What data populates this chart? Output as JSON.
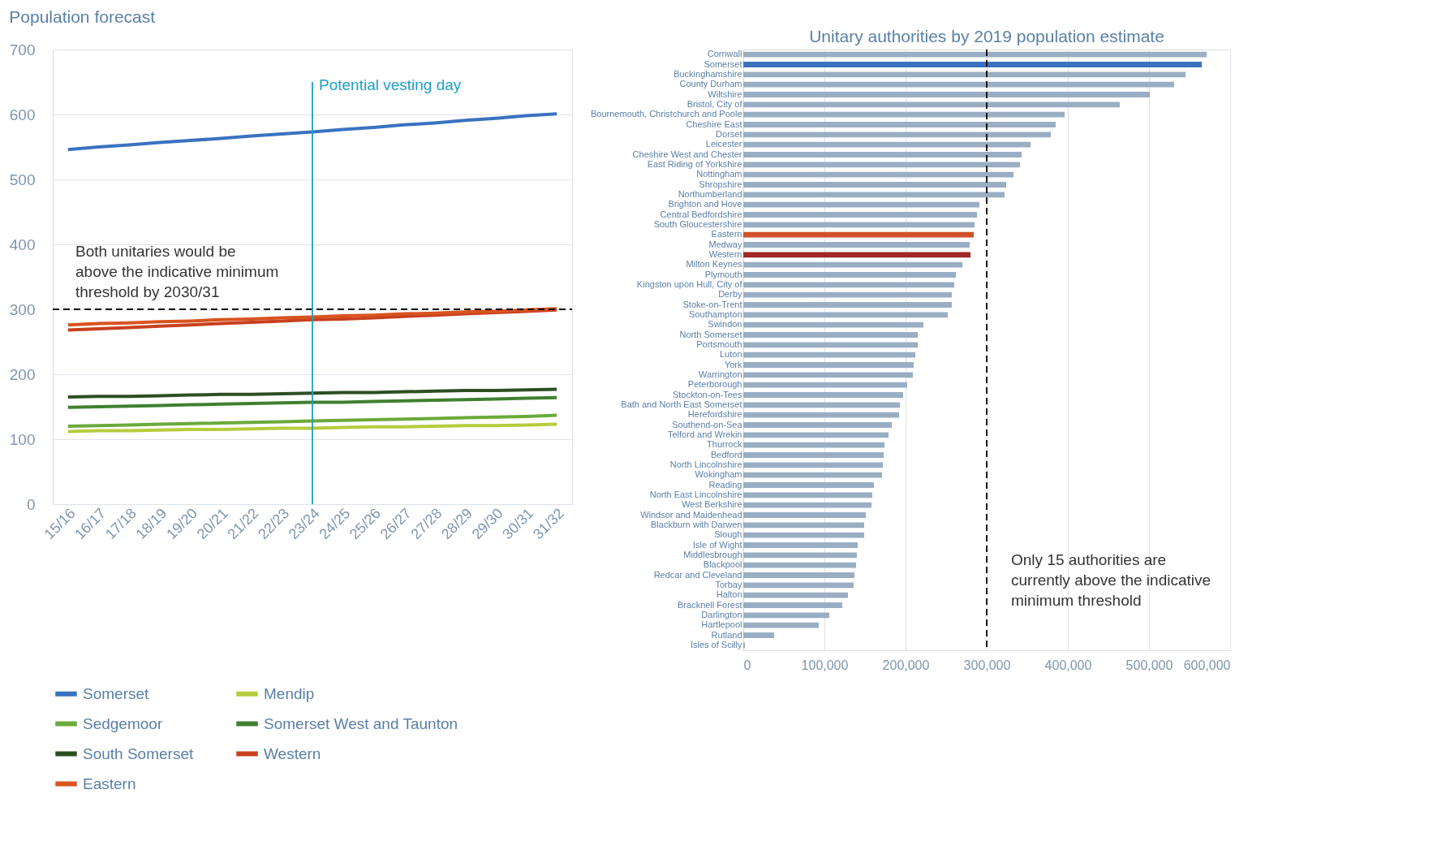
{
  "chart_data": [
    {
      "type": "line",
      "title": "Population forecast",
      "categories": [
        "15/16",
        "16/17",
        "17/18",
        "18/19",
        "19/20",
        "20/21",
        "21/22",
        "22/23",
        "23/24",
        "24/25",
        "25/26",
        "26/27",
        "27/28",
        "28/29",
        "29/30",
        "30/31",
        "31/32"
      ],
      "series": [
        {
          "name": "Somerset",
          "color": "#3a72c0",
          "values": [
            546,
            550,
            553,
            557,
            560,
            563,
            567,
            570,
            573,
            577,
            580,
            584,
            587,
            591,
            594,
            598,
            601
          ]
        },
        {
          "name": "Mendip",
          "color": "#b5cc3c",
          "values": [
            112,
            113,
            113,
            114,
            115,
            115,
            116,
            117,
            117,
            118,
            119,
            119,
            120,
            121,
            121,
            122,
            123
          ]
        },
        {
          "name": "Sedgemoor",
          "color": "#6aaa3a",
          "values": [
            120,
            121,
            122,
            123,
            124,
            125,
            126,
            127,
            128,
            129,
            130,
            131,
            132,
            133,
            134,
            135,
            137
          ]
        },
        {
          "name": "Somerset West and Taunton",
          "color": "#3f8030",
          "values": [
            149,
            150,
            151,
            152,
            153,
            154,
            155,
            156,
            157,
            157,
            158,
            159,
            160,
            161,
            162,
            163,
            164
          ]
        },
        {
          "name": "South Somerset",
          "color": "#2c4f22",
          "values": [
            165,
            166,
            166,
            167,
            168,
            169,
            169,
            170,
            171,
            172,
            172,
            173,
            174,
            175,
            175,
            176,
            177
          ]
        },
        {
          "name": "Western",
          "color": "#c8401f",
          "values": [
            268,
            270,
            272,
            274,
            276,
            278,
            280,
            282,
            284,
            285,
            287,
            289,
            291,
            293,
            295,
            297,
            299
          ]
        },
        {
          "name": "Eastern",
          "color": "#d9531e",
          "values": [
            276,
            278,
            279,
            281,
            282,
            284,
            285,
            287,
            288,
            290,
            291,
            293,
            294,
            296,
            297,
            299,
            301
          ]
        }
      ],
      "ylim": [
        0,
        700
      ],
      "yticks": [
        0,
        100,
        200,
        300,
        400,
        500,
        600,
        700
      ],
      "grid": "y",
      "legend": "bottom",
      "marker": "none",
      "line_style": "solid",
      "ref_lines": [
        {
          "axis": "y",
          "value": 300,
          "label": null,
          "color": "#000000",
          "line_style": "dashed"
        },
        {
          "axis": "x",
          "value": "23/24",
          "label": "Potential vesting day",
          "color": "#1aa0c8",
          "line_style": "solid"
        }
      ],
      "annotations": [
        "Both unitaries would be above the indicative minimum threshold by 2030/31"
      ]
    },
    {
      "type": "bar",
      "orientation": "horizontal",
      "title": "Unitary authorities by 2019 population estimate",
      "categories": [
        "Cornwall",
        "Somerset",
        "Buckinghamshire",
        "County Durham",
        "Wiltshire",
        "Bristol, City of",
        "Bournemouth, Christchurch and Poole",
        "Cheshire East",
        "Dorset",
        "Leicester",
        "Cheshire West and Chester",
        "East Riding of Yorkshire",
        "Nottingham",
        "Shropshire",
        "Northumberland",
        "Brighton and Hove",
        "Central Bedfordshire",
        "South Gloucestershire",
        "Eastern",
        "Medway",
        "Western",
        "Milton Keynes",
        "Plymouth",
        "Kingston upon Hull, City of",
        "Derby",
        "Stoke-on-Trent",
        "Southampton",
        "Swindon",
        "North Somerset",
        "Portsmouth",
        "Luton",
        "York",
        "Warrington",
        "Peterborough",
        "Stockton-on-Tees",
        "Bath and North East Somerset",
        "Herefordshire",
        "Southend-on-Sea",
        "Telford and Wrekin",
        "Thurrock",
        "Bedford",
        "North Lincolnshire",
        "Wokingham",
        "Reading",
        "North East Lincolnshire",
        "West Berkshire",
        "Windsor and Maidenhead",
        "Blackburn with Darwen",
        "Slough",
        "Isle of Wight",
        "Middlesbrough",
        "Blackpool",
        "Redcar and Cleveland",
        "Torbay",
        "Halton",
        "Bracknell Forest",
        "Darlington",
        "Hartlepool",
        "Rutland",
        "Isles of Scilly"
      ],
      "values": [
        571000,
        565000,
        545000,
        531000,
        501000,
        464000,
        396000,
        385000,
        379000,
        354000,
        343000,
        341000,
        333000,
        324000,
        322000,
        291000,
        288000,
        285000,
        284000,
        279000,
        280000,
        270000,
        262000,
        260000,
        257000,
        257000,
        252000,
        222000,
        215000,
        215000,
        212000,
        210000,
        209000,
        202000,
        197000,
        193000,
        192000,
        183000,
        179000,
        174000,
        173000,
        172000,
        171000,
        161000,
        159000,
        158000,
        151000,
        149000,
        149000,
        141000,
        140000,
        139000,
        137000,
        136000,
        129000,
        122000,
        106000,
        93000,
        38000,
        2000
      ],
      "colors": [
        "#9aaec3",
        "#3a72c0",
        "#9aaec3",
        "#9aaec3",
        "#9aaec3",
        "#9aaec3",
        "#9aaec3",
        "#9aaec3",
        "#9aaec3",
        "#9aaec3",
        "#9aaec3",
        "#9aaec3",
        "#9aaec3",
        "#9aaec3",
        "#9aaec3",
        "#9aaec3",
        "#9aaec3",
        "#9aaec3",
        "#d0502a",
        "#9aaec3",
        "#a02828",
        "#9aaec3",
        "#9aaec3",
        "#9aaec3",
        "#9aaec3",
        "#9aaec3",
        "#9aaec3",
        "#9aaec3",
        "#9aaec3",
        "#9aaec3",
        "#9aaec3",
        "#9aaec3",
        "#9aaec3",
        "#9aaec3",
        "#9aaec3",
        "#9aaec3",
        "#9aaec3",
        "#9aaec3",
        "#9aaec3",
        "#9aaec3",
        "#9aaec3",
        "#9aaec3",
        "#9aaec3",
        "#9aaec3",
        "#9aaec3",
        "#9aaec3",
        "#9aaec3",
        "#9aaec3",
        "#9aaec3",
        "#9aaec3",
        "#9aaec3",
        "#9aaec3",
        "#9aaec3",
        "#9aaec3",
        "#9aaec3",
        "#9aaec3",
        "#9aaec3",
        "#9aaec3",
        "#9aaec3",
        "#9aaec3"
      ],
      "xlim": [
        0,
        600000
      ],
      "xticks": [
        0,
        {
          "value": 100000,
          "label": "100,000"
        },
        {
          "value": 200000,
          "label": "200,000"
        },
        {
          "value": 300000,
          "label": "300,000"
        },
        {
          "value": 400000,
          "label": "400,000"
        },
        {
          "value": 500000,
          "label": "500,000"
        },
        {
          "value": 600000,
          "label": "600,000"
        }
      ],
      "grid": "x",
      "ref_lines": [
        {
          "axis": "x",
          "value": 300000,
          "label": null,
          "color": "#000000",
          "line_style": "dashed"
        }
      ],
      "annotations": [
        "Only 15 authorities are currently above the indicative minimum threshold"
      ]
    }
  ]
}
